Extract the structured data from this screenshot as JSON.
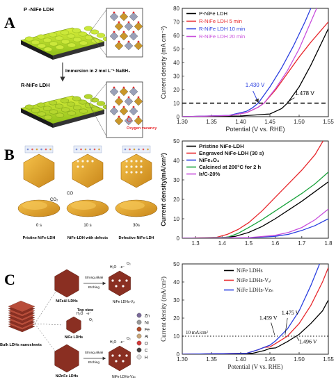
{
  "panels": {
    "A": {
      "letter": "A",
      "schematic": {
        "top_label": "P -NiFe LDH",
        "arrow_label": "Immersion in 2 mol L⁻¹ NaBH₄",
        "bottom_label": "R-NiFe LDH",
        "vacancy_label": "Oxygen vacancy"
      }
    },
    "B": {
      "letter": "B",
      "schematic": {
        "co_label": "CO",
        "co2_label": "CO₂",
        "time_labels": [
          "0 s",
          "10 s",
          "30s"
        ],
        "captions": [
          "Pristine NiFe-LDH",
          "NiFe-LDH with defects",
          "Defective NiFe-LDH"
        ]
      }
    },
    "C": {
      "letter": "C",
      "schematic": {
        "bulk_label": "Bulk LDHs nanosheets",
        "top_view": "Top view",
        "nodes": [
          "NiFeAl LDHs",
          "NiFe LDHs",
          "NiZnFe LDHs"
        ],
        "products": [
          "NiFe LDHs-Vₐₗ",
          "NiFe LDHs-Vᴢₙ"
        ],
        "etch_label": "Strong alkali",
        "etch_label2": "Etching",
        "h2o": "H₂O",
        "e_label": "-e⁻",
        "o2": "O₂",
        "elements": [
          "Zn",
          "Ni",
          "Fe",
          "Al",
          "O",
          "C",
          "H"
        ],
        "element_colors": [
          "#7a6a9a",
          "#9a9a9a",
          "#b04a2a",
          "#c9a77a",
          "#d43a3a",
          "#444444",
          "#dddddd"
        ]
      }
    }
  },
  "chart_data": [
    {
      "type": "line",
      "xlabel": "Potential (V vs. RHE)",
      "ylabel": "Current density (mA cm⁻²)",
      "xlim": [
        1.3,
        1.55
      ],
      "ylim": [
        0,
        80
      ],
      "xticks": [
        "1.30",
        "1.35",
        "1.40",
        "1.45",
        "1.50",
        "1.55"
      ],
      "yticks": [
        "0",
        "10",
        "20",
        "30",
        "40",
        "50",
        "60",
        "70",
        "80"
      ],
      "legend_position": "top-left",
      "series": [
        {
          "name": "P-NiFe LDH",
          "color": "#000000",
          "x": [
            1.3,
            1.4,
            1.45,
            1.47,
            1.48,
            1.5,
            1.52,
            1.54,
            1.55
          ],
          "y": [
            0,
            0.5,
            2,
            6,
            10,
            22,
            38,
            56,
            65
          ]
        },
        {
          "name": "R-NiFe LDH 5 min",
          "color": "#e8282d",
          "x": [
            1.3,
            1.38,
            1.41,
            1.43,
            1.44,
            1.46,
            1.48,
            1.5,
            1.52,
            1.55
          ],
          "y": [
            0,
            0.8,
            3,
            7,
            10,
            20,
            32,
            44,
            55,
            70
          ]
        },
        {
          "name": "R-NiFe LDH 10 min",
          "color": "#2a3fe0",
          "x": [
            1.3,
            1.38,
            1.41,
            1.42,
            1.43,
            1.45,
            1.47,
            1.49,
            1.51,
            1.52
          ],
          "y": [
            0,
            1,
            4,
            6.5,
            10,
            22,
            36,
            52,
            70,
            80
          ]
        },
        {
          "name": "R-NiFe LDH 20 min",
          "color": "#c84fdc",
          "x": [
            1.3,
            1.38,
            1.41,
            1.43,
            1.44,
            1.46,
            1.48,
            1.5,
            1.52,
            1.53
          ],
          "y": [
            0,
            0.8,
            3,
            7,
            10,
            21,
            34,
            50,
            70,
            80
          ]
        }
      ],
      "reference_line": {
        "y": 10
      },
      "annotations": [
        {
          "text": "1.430 V",
          "color": "#2a3fe0"
        },
        {
          "text": "1.478 V",
          "color": "#000000"
        }
      ]
    },
    {
      "type": "line",
      "ylabel": "Current density(mA/cm²)",
      "xlim": [
        1.25,
        1.8
      ],
      "ylim": [
        0,
        50
      ],
      "xticks": [
        "1.3",
        "1.4",
        "1.5",
        "1.6",
        "1.7",
        "1.8"
      ],
      "yticks": [
        "0",
        "10",
        "20",
        "30",
        "40",
        "50"
      ],
      "legend_position": "top-left",
      "series": [
        {
          "name": "Pristine NiFe-LDH",
          "color": "#000000",
          "x": [
            1.25,
            1.4,
            1.45,
            1.5,
            1.55,
            1.6,
            1.65,
            1.7,
            1.75,
            1.8
          ],
          "y": [
            0,
            0.3,
            1,
            3,
            6,
            10,
            14.5,
            19,
            24,
            29
          ]
        },
        {
          "name": "Engraved NiFe-LDH (30 s)",
          "color": "#e8282d",
          "x": [
            1.25,
            1.38,
            1.42,
            1.46,
            1.5,
            1.55,
            1.6,
            1.65,
            1.7,
            1.75,
            1.78
          ],
          "y": [
            0,
            0.5,
            2,
            4.5,
            8,
            14,
            21,
            28,
            35,
            43,
            50
          ]
        },
        {
          "name": "NiFe₂O₄",
          "color": "#2a3fe0",
          "x": [
            1.25,
            1.5,
            1.6,
            1.65,
            1.7,
            1.75,
            1.8
          ],
          "y": [
            0,
            0.2,
            1,
            2,
            4,
            6.5,
            10
          ]
        },
        {
          "name": "Calcined at 200°C for 2 h",
          "color": "#1aa33c",
          "x": [
            1.25,
            1.42,
            1.46,
            1.5,
            1.55,
            1.6,
            1.65,
            1.7,
            1.75,
            1.8
          ],
          "y": [
            0,
            0.5,
            2.5,
            5.5,
            9.5,
            14,
            18.5,
            23,
            28,
            34
          ]
        },
        {
          "name": "Ir/C-20%",
          "color": "#c84fdc",
          "x": [
            1.25,
            1.5,
            1.6,
            1.65,
            1.7,
            1.75,
            1.8
          ],
          "y": [
            0,
            0.3,
            1.5,
            3,
            5.5,
            9.5,
            15
          ]
        }
      ]
    },
    {
      "type": "line",
      "xlabel": "Potential (V vs. RHE)",
      "ylabel": "Current density (mA/cm²)",
      "xlim": [
        1.3,
        1.55
      ],
      "ylim": [
        0,
        50
      ],
      "xticks": [
        "1.30",
        "1.35",
        "1.40",
        "1.45",
        "1.50",
        "1.55"
      ],
      "yticks": [
        "0",
        "10",
        "20",
        "30",
        "40",
        "50"
      ],
      "legend_position": "top-center",
      "series": [
        {
          "name": "NiFe LDHs",
          "color": "#000000",
          "x": [
            1.3,
            1.42,
            1.44,
            1.45,
            1.46,
            1.48,
            1.5,
            1.52,
            1.54,
            1.55
          ],
          "y": [
            0,
            0.5,
            2,
            3.2,
            3.5,
            7,
            11,
            17,
            24,
            30
          ]
        },
        {
          "name": "NiFe LDHs-Vₐₗ",
          "color": "#e8282d",
          "x": [
            1.3,
            1.41,
            1.43,
            1.44,
            1.45,
            1.46,
            1.48,
            1.5,
            1.52,
            1.54,
            1.55
          ],
          "y": [
            0,
            0.5,
            2.5,
            3.8,
            4,
            6,
            10,
            17,
            27,
            40,
            48
          ]
        },
        {
          "name": "NiFe LDHs-Vᴢₙ",
          "color": "#2a3fe0",
          "x": [
            1.3,
            1.41,
            1.43,
            1.44,
            1.45,
            1.46,
            1.48,
            1.5,
            1.52,
            1.535
          ],
          "y": [
            0,
            0.5,
            2.5,
            3.8,
            5,
            7.5,
            14,
            24,
            38,
            50
          ]
        }
      ],
      "reference_line": {
        "y": 10,
        "label": "10 mA/cm²"
      },
      "annotations": [
        {
          "text": "1.459 V"
        },
        {
          "text": "1.475 V"
        },
        {
          "text": "1.496 V"
        }
      ]
    }
  ]
}
